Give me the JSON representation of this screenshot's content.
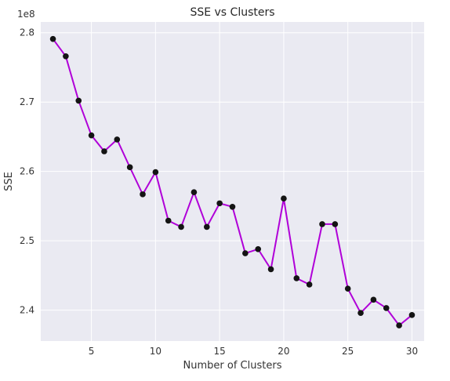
{
  "chart_data": {
    "type": "line",
    "title": "SSE vs Clusters",
    "xlabel": "Number of Clusters",
    "ylabel": "SSE",
    "offset_text": "1e8",
    "xlim": [
      1.05,
      30.95
    ],
    "ylim": [
      2.3555,
      2.8155
    ],
    "xticks": [
      5,
      10,
      15,
      20,
      25,
      30
    ],
    "xtick_labels": [
      "5",
      "10",
      "15",
      "20",
      "25",
      "30"
    ],
    "yticks": [
      2.4,
      2.5,
      2.6,
      2.7,
      2.8
    ],
    "ytick_labels": [
      "2.4",
      "2.5",
      "2.6",
      "2.7",
      "2.8"
    ],
    "grid": true,
    "colors": {
      "background": "#eaeaf2",
      "grid": "#ffffff",
      "line": "#b000d8",
      "marker": "#141414"
    },
    "series": [
      {
        "x": [
          2,
          3,
          4,
          5,
          6,
          7,
          8,
          9,
          10,
          11,
          12,
          13,
          14,
          15,
          16,
          17,
          18,
          19,
          20,
          21,
          22,
          23,
          24,
          25,
          26,
          27,
          28,
          29,
          30
        ],
        "y": [
          2.791,
          2.766,
          2.702,
          2.652,
          2.629,
          2.646,
          2.606,
          2.567,
          2.599,
          2.529,
          2.52,
          2.57,
          2.52,
          2.554,
          2.549,
          2.482,
          2.488,
          2.459,
          2.561,
          2.446,
          2.437,
          2.524,
          2.524,
          2.431,
          2.396,
          2.415,
          2.403,
          2.378,
          2.393
        ]
      }
    ]
  }
}
